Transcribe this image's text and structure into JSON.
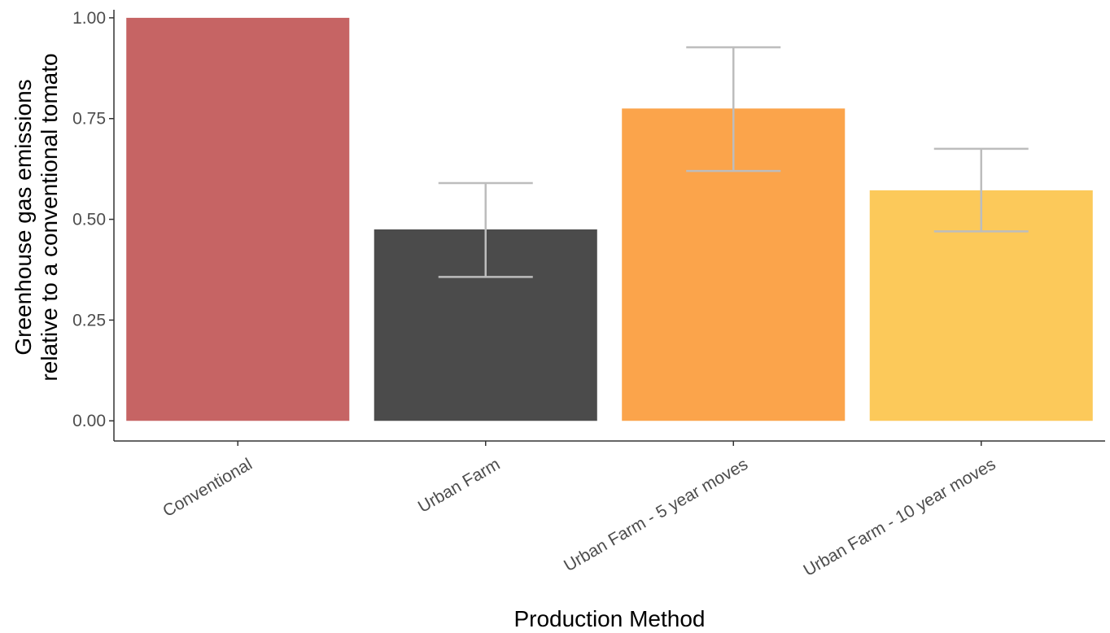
{
  "chart_data": {
    "type": "bar",
    "title": "",
    "xlabel": "Production Method",
    "ylabel_lines": [
      "Greenhouse gas emissions",
      "relative to a conventional tomato"
    ],
    "categories": [
      "Conventional",
      "Urban Farm",
      "Urban Farm - 5 year moves",
      "Urban Farm - 10 year moves"
    ],
    "values": [
      1.0,
      0.475,
      0.775,
      0.572
    ],
    "error_low": [
      null,
      0.357,
      0.62,
      0.47
    ],
    "error_high": [
      null,
      0.59,
      0.927,
      0.675
    ],
    "colors": [
      "#c66464",
      "#4b4b4b",
      "#fba44b",
      "#fcc95a"
    ],
    "error_color": "#bdbdbd",
    "ylim": [
      -0.05,
      1.02
    ],
    "yticks": [
      0.0,
      0.25,
      0.5,
      0.75,
      1.0
    ],
    "ytick_labels": [
      "0.00",
      "0.25",
      "0.50",
      "0.75",
      "1.00"
    ],
    "grid": false,
    "legend": "none"
  }
}
